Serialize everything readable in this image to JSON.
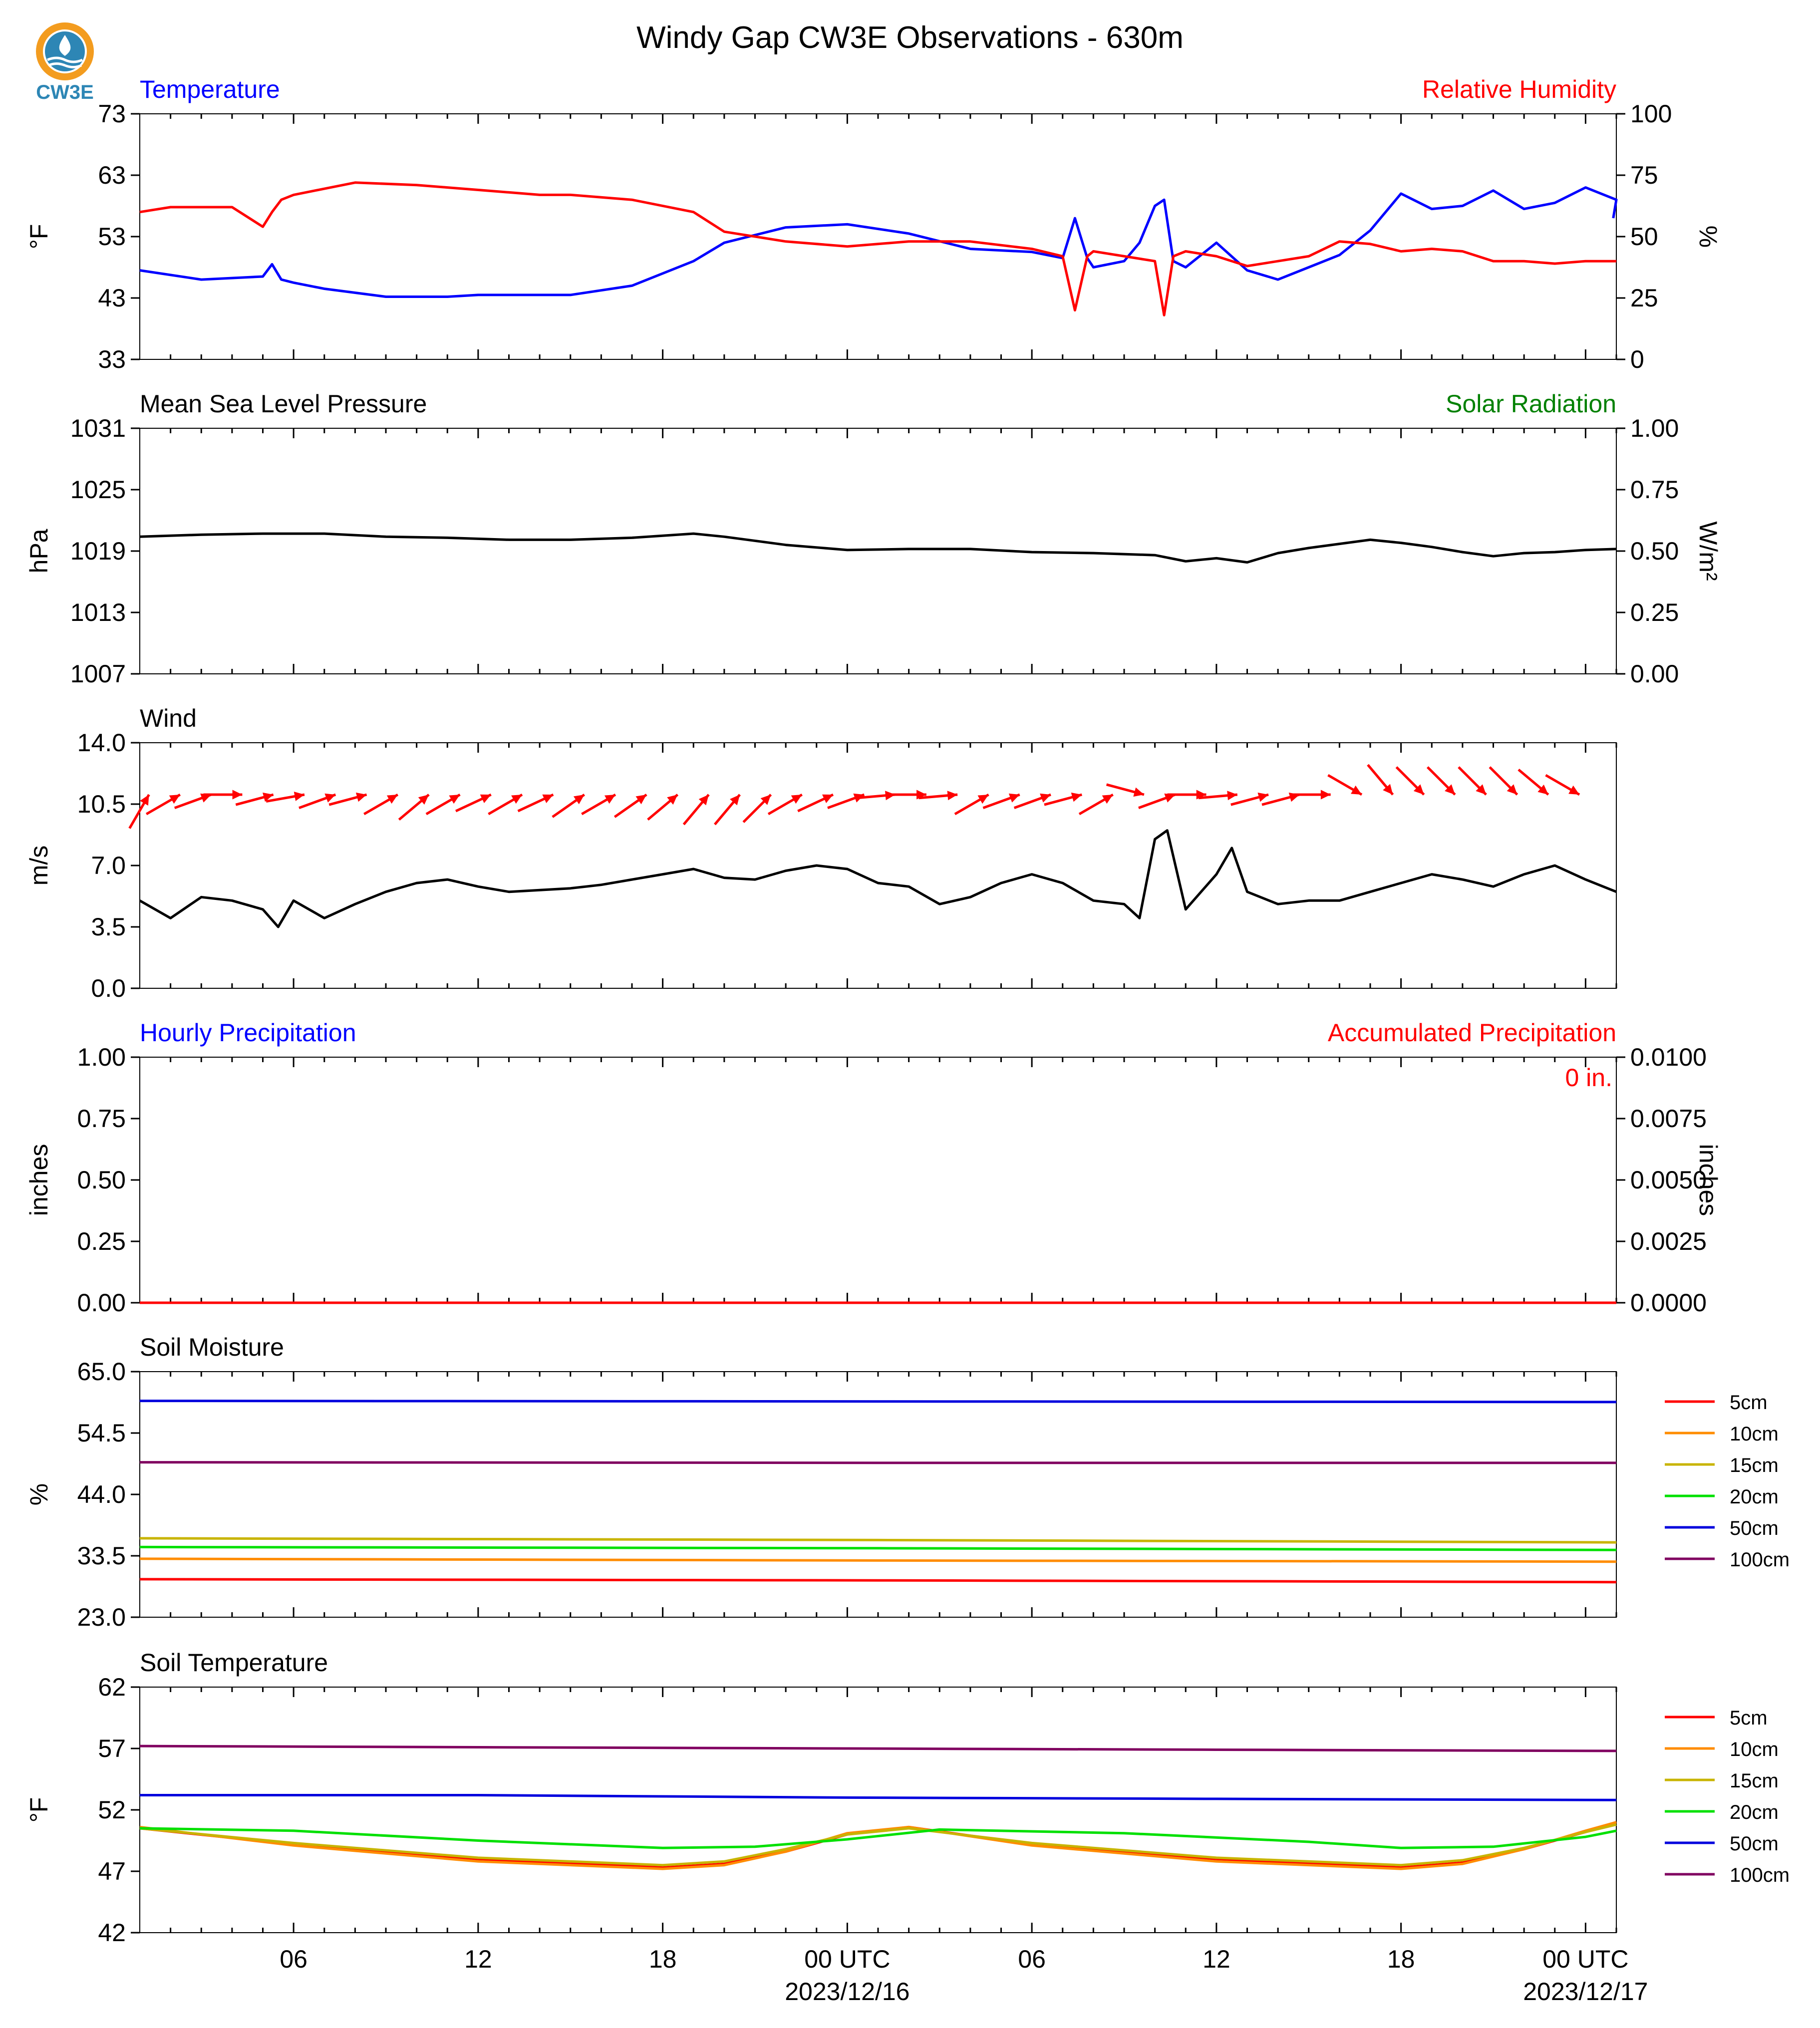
{
  "page": {
    "title": "Windy Gap CW3E Observations - 630m",
    "logo_text": "CW3E"
  },
  "colors": {
    "temperature": "#0000ff",
    "humidity": "#ff0000",
    "pressure": "#000000",
    "solar": "#008000",
    "wind_speed": "#000000",
    "wind_arrow": "#ff0000",
    "hourly_precip": "#0000ff",
    "accum_precip": "#ff0000",
    "depth_5cm": "#ff0000",
    "depth_10cm": "#ff8c00",
    "depth_15cm": "#c8b400",
    "depth_20cm": "#00e000",
    "depth_50cm": "#0000dd",
    "depth_100cm": "#800060"
  },
  "x_axis": {
    "tick_labels": [
      "06",
      "12",
      "18",
      "00 UTC",
      "06",
      "12",
      "18",
      "00 UTC"
    ],
    "date_labels": [
      "2023/12/16",
      "2023/12/17"
    ]
  },
  "chart_data": [
    {
      "type": "line",
      "panel": "temperature",
      "title_left": "Temperature",
      "title_right": "Relative Humidity",
      "ylabel": "°F",
      "ylabel_right": "%",
      "ylim": [
        33,
        73
      ],
      "ylim_right": [
        0,
        100
      ],
      "yticks": [
        "33",
        "43",
        "53",
        "63",
        "73"
      ],
      "yticks_right": [
        "0",
        "25",
        "50",
        "75",
        "100"
      ],
      "series": [
        {
          "name": "Temperature",
          "x": [
            1,
            3,
            5,
            5.3,
            5.6,
            6,
            7,
            9,
            11,
            12,
            13,
            15,
            17,
            19,
            20,
            22,
            24,
            26,
            28,
            30,
            31,
            31.4,
            31.8,
            32,
            33,
            33.5,
            34,
            34.3,
            34.6,
            35,
            36,
            37,
            38,
            39,
            40,
            41,
            42,
            43,
            44,
            45,
            46,
            47,
            48,
            49,
            48.9
          ],
          "values": [
            47.5,
            46.0,
            46.5,
            48.5,
            46.0,
            45.5,
            44.5,
            43.2,
            43.2,
            43.5,
            43.5,
            43.5,
            45.0,
            49.0,
            52.0,
            54.5,
            55.0,
            53.5,
            51.0,
            50.5,
            49.5,
            56.0,
            49.5,
            48.0,
            49.0,
            52.0,
            58.0,
            59.0,
            49.0,
            48.0,
            52.0,
            47.5,
            46.0,
            48.0,
            50.0,
            54.0,
            60.0,
            57.5,
            58.0,
            60.5,
            57.5,
            58.5,
            61.0,
            59.0,
            56.0
          ]
        },
        {
          "name": "Relative Humidity",
          "x": [
            1,
            2,
            4,
            5,
            5.3,
            5.6,
            6,
            8,
            10,
            11,
            12,
            13,
            14,
            15,
            17,
            19,
            20,
            22,
            24,
            26,
            28,
            30,
            31,
            31.4,
            31.8,
            32,
            34,
            34.3,
            34.6,
            35,
            36,
            37,
            38,
            39,
            40,
            41,
            42,
            43,
            44,
            45,
            46,
            47,
            48,
            49
          ],
          "values": [
            60,
            62,
            62,
            54,
            60,
            65,
            67,
            72,
            71,
            70,
            69,
            68,
            67,
            67,
            65,
            60,
            52,
            48,
            46,
            48,
            48,
            45,
            42,
            20,
            42,
            44,
            40,
            18,
            42,
            44,
            42,
            38,
            40,
            42,
            48,
            47,
            44,
            45,
            44,
            40,
            40,
            39,
            40,
            40
          ]
        }
      ]
    },
    {
      "type": "line",
      "panel": "pressure",
      "title_left": "Mean Sea Level Pressure",
      "title_right": "Solar Radiation",
      "ylabel": "hPa",
      "ylabel_right": "W/m²",
      "ylim": [
        1007,
        1031
      ],
      "ylim_right": [
        0,
        1
      ],
      "yticks": [
        "1007",
        "1013",
        "1019",
        "1025",
        "1031"
      ],
      "yticks_right": [
        "0.00",
        "0.25",
        "0.50",
        "0.75",
        "1.00"
      ],
      "series": [
        {
          "name": "Mean Sea Level Pressure",
          "x": [
            1,
            3,
            5,
            7,
            9,
            11,
            13,
            15,
            17,
            19,
            20,
            22,
            24,
            26,
            28,
            30,
            32,
            34,
            35,
            36,
            37,
            38,
            39,
            40,
            41,
            42,
            43,
            44,
            45,
            46,
            47,
            48,
            49
          ],
          "values": [
            1020.4,
            1020.6,
            1020.7,
            1020.7,
            1020.4,
            1020.3,
            1020.1,
            1020.1,
            1020.3,
            1020.7,
            1020.4,
            1019.6,
            1019.1,
            1019.2,
            1019.2,
            1018.9,
            1018.8,
            1018.6,
            1018.0,
            1018.3,
            1017.9,
            1018.8,
            1019.3,
            1019.7,
            1020.1,
            1019.8,
            1019.4,
            1018.9,
            1018.5,
            1018.8,
            1018.9,
            1019.1,
            1019.2
          ]
        }
      ]
    },
    {
      "type": "line",
      "panel": "wind",
      "title_left": "Wind",
      "ylabel": "m/s",
      "ylim": [
        0,
        14
      ],
      "yticks": [
        "0.0",
        "3.5",
        "7.0",
        "10.5",
        "14.0"
      ],
      "series": [
        {
          "name": "Wind",
          "x": [
            1,
            2,
            3,
            4,
            5,
            5.5,
            6,
            7,
            8,
            9,
            10,
            11,
            12,
            13,
            14,
            15,
            16,
            17,
            18,
            19,
            20,
            21,
            22,
            23,
            24,
            25,
            26,
            27,
            28,
            29,
            30,
            31,
            32,
            33,
            33.5,
            34,
            34.4,
            35,
            36,
            36.5,
            37,
            38,
            39,
            40,
            41,
            42,
            43,
            44,
            45,
            46,
            47,
            48,
            49
          ],
          "values": [
            5.0,
            4.0,
            5.2,
            5.0,
            4.5,
            3.5,
            5.0,
            4.0,
            4.8,
            5.5,
            6.0,
            6.2,
            5.8,
            5.5,
            5.6,
            5.7,
            5.9,
            6.2,
            6.5,
            6.8,
            6.3,
            6.2,
            6.7,
            7.0,
            6.8,
            6.0,
            5.8,
            4.8,
            5.2,
            6.0,
            6.5,
            6.0,
            5.0,
            4.8,
            4.0,
            8.5,
            9.0,
            4.5,
            6.5,
            8.0,
            5.5,
            4.8,
            5.0,
            5.0,
            5.5,
            6.0,
            6.5,
            6.2,
            5.8,
            6.5,
            7.0,
            6.2,
            5.5
          ]
        }
      ],
      "wind_vectors_deg_toward": [
        330,
        300,
        290,
        270,
        285,
        280,
        290,
        285,
        300,
        310,
        300,
        295,
        300,
        295,
        305,
        300,
        305,
        310,
        320,
        320,
        315,
        300,
        295,
        290,
        275,
        270,
        275,
        300,
        290,
        290,
        285,
        300,
        255,
        290,
        270,
        275,
        285,
        285,
        270,
        240,
        220,
        225,
        225,
        225,
        225,
        230,
        240
      ]
    },
    {
      "type": "line",
      "panel": "precipitation",
      "title_left": "Hourly Precipitation",
      "title_right": "Accumulated Precipitation",
      "annotation": "0 in.",
      "ylabel": "inches",
      "ylabel_right": "inches",
      "ylim": [
        0,
        1
      ],
      "ylim_right": [
        0,
        0.01
      ],
      "yticks": [
        "0.00",
        "0.25",
        "0.50",
        "0.75",
        "1.00"
      ],
      "yticks_right": [
        "0.0000",
        "0.0025",
        "0.0050",
        "0.0075",
        "0.0100"
      ],
      "series": [
        {
          "name": "Accumulated Precipitation",
          "x": [
            1,
            49
          ],
          "values": [
            0,
            0
          ]
        }
      ]
    },
    {
      "type": "line",
      "panel": "soil_moisture",
      "title_left": "Soil Moisture",
      "ylabel": "%",
      "ylim": [
        23,
        65
      ],
      "yticks": [
        "23.0",
        "33.5",
        "44.0",
        "54.5",
        "65.0"
      ],
      "series": [
        {
          "name": "5cm",
          "x": [
            1,
            25,
            49
          ],
          "values": [
            29.5,
            29.3,
            29.0
          ]
        },
        {
          "name": "10cm",
          "x": [
            1,
            25,
            49
          ],
          "values": [
            33.0,
            32.7,
            32.5
          ]
        },
        {
          "name": "15cm",
          "x": [
            1,
            25,
            49
          ],
          "values": [
            36.5,
            36.2,
            35.8
          ]
        },
        {
          "name": "20cm",
          "x": [
            1,
            25,
            49
          ],
          "values": [
            35.0,
            34.8,
            34.5
          ]
        },
        {
          "name": "50cm",
          "x": [
            1,
            25,
            49
          ],
          "values": [
            60.0,
            59.9,
            59.8
          ]
        },
        {
          "name": "100cm",
          "x": [
            1,
            25,
            49
          ],
          "values": [
            49.5,
            49.4,
            49.4
          ]
        }
      ]
    },
    {
      "type": "line",
      "panel": "soil_temperature",
      "title_left": "Soil Temperature",
      "ylabel": "°F",
      "ylim": [
        42,
        62
      ],
      "yticks": [
        "42",
        "47",
        "52",
        "57",
        "62"
      ],
      "series": [
        {
          "name": "5cm",
          "x": [
            1,
            6,
            12,
            18,
            20,
            22,
            24,
            26,
            30,
            36,
            42,
            44,
            46,
            48,
            49
          ],
          "values": [
            50.5,
            49.2,
            48.0,
            47.3,
            47.6,
            48.6,
            50.0,
            50.6,
            49.2,
            48.0,
            47.3,
            47.7,
            48.8,
            50.2,
            51.0
          ]
        },
        {
          "name": "10cm",
          "x": [
            1,
            6,
            12,
            18,
            20,
            22,
            24,
            26,
            30,
            36,
            42,
            44,
            46,
            48,
            49
          ],
          "values": [
            50.6,
            49.1,
            47.8,
            47.2,
            47.5,
            48.6,
            50.1,
            50.6,
            49.1,
            47.8,
            47.2,
            47.6,
            48.8,
            50.3,
            51.0
          ]
        },
        {
          "name": "15cm",
          "x": [
            1,
            6,
            12,
            18,
            20,
            22,
            24,
            26,
            30,
            36,
            42,
            44,
            46,
            48,
            49
          ],
          "values": [
            50.5,
            49.3,
            48.1,
            47.5,
            47.8,
            48.8,
            50.0,
            50.5,
            49.3,
            48.1,
            47.5,
            47.9,
            48.9,
            50.2,
            50.8
          ]
        },
        {
          "name": "20cm",
          "x": [
            1,
            6,
            12,
            18,
            21,
            24,
            27,
            33,
            39,
            42,
            45,
            48,
            49
          ],
          "values": [
            50.5,
            50.3,
            49.5,
            48.9,
            49.0,
            49.6,
            50.4,
            50.1,
            49.4,
            48.9,
            49.0,
            49.8,
            50.3
          ]
        },
        {
          "name": "50cm",
          "x": [
            1,
            12,
            24,
            36,
            49
          ],
          "values": [
            53.2,
            53.2,
            53.0,
            52.9,
            52.8
          ]
        },
        {
          "name": "100cm",
          "x": [
            1,
            12,
            24,
            36,
            49
          ],
          "values": [
            57.2,
            57.1,
            57.0,
            56.9,
            56.8
          ]
        }
      ]
    }
  ],
  "legend": {
    "soil_moisture": [
      "5cm",
      "10cm",
      "15cm",
      "20cm",
      "50cm",
      "100cm"
    ],
    "soil_temperature": [
      "5cm",
      "10cm",
      "15cm",
      "20cm",
      "50cm",
      "100cm"
    ]
  }
}
